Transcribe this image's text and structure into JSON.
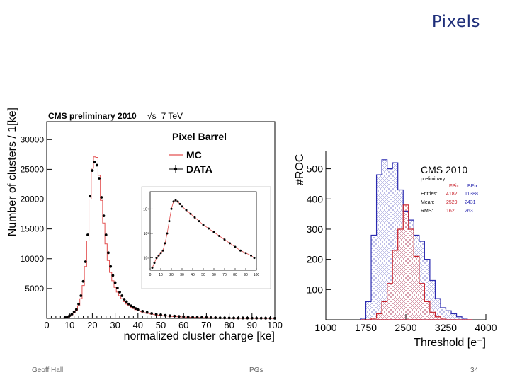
{
  "slide": {
    "title": "Pixels"
  },
  "footer": {
    "author": "Geoff Hall",
    "center": "PGs",
    "page": "34"
  },
  "chart_data": [
    {
      "type": "histogram",
      "title": "CMS preliminary 2010",
      "subtitle": "√s=7 TeV",
      "xlabel": "normalized cluster charge [ke]",
      "ylabel": "Number of clusters / 1[ke]",
      "xlim": [
        0,
        100
      ],
      "ylim": [
        0,
        33000
      ],
      "xticks": [
        0,
        10,
        20,
        30,
        40,
        50,
        60,
        70,
        80,
        90,
        100
      ],
      "yticks": [
        5000,
        10000,
        15000,
        20000,
        25000,
        30000
      ],
      "legend": {
        "header": "Pixel Barrel",
        "placement": "top-right",
        "entries": [
          "MC",
          "DATA"
        ]
      },
      "x": [
        8,
        9,
        10,
        11,
        12,
        13,
        14,
        15,
        16,
        17,
        18,
        19,
        20,
        21,
        22,
        23,
        24,
        25,
        26,
        27,
        28,
        29,
        30,
        31,
        32,
        33,
        34,
        35,
        36,
        37,
        38,
        39,
        40,
        42,
        44,
        46,
        48,
        50,
        52,
        54,
        56,
        58,
        60,
        62,
        64,
        66,
        68,
        70,
        72,
        74,
        76,
        78,
        80,
        82,
        84,
        86,
        88,
        90,
        92,
        94,
        96,
        98,
        100
      ],
      "series": [
        {
          "name": "MC",
          "color": "#e35050",
          "values": [
            100,
            200,
            350,
            600,
            900,
            1300,
            2100,
            3300,
            5500,
            8700,
            13000,
            20000,
            25200,
            27100,
            27000,
            24000,
            19800,
            16000,
            12500,
            9700,
            7700,
            6300,
            5200,
            4400,
            3800,
            3300,
            2800,
            2400,
            2100,
            1850,
            1650,
            1450,
            1300,
            1050,
            850,
            700,
            580,
            490,
            420,
            360,
            300,
            260,
            220,
            190,
            160,
            140,
            120,
            100,
            85,
            70,
            60,
            50,
            40,
            35,
            30,
            25,
            20,
            15,
            12,
            10,
            8,
            6,
            5
          ]
        },
        {
          "name": "DATA",
          "color": "#000000",
          "values": [
            150,
            250,
            450,
            700,
            1100,
            1500,
            2400,
            3800,
            6200,
            9500,
            14000,
            20500,
            24800,
            26200,
            25700,
            23500,
            20300,
            17200,
            14000,
            11000,
            8700,
            7200,
            6000,
            5100,
            4400,
            3800,
            3200,
            2800,
            2400,
            2100,
            1850,
            1650,
            1450,
            1200,
            1000,
            830,
            700,
            600,
            510,
            440,
            380,
            330,
            280,
            240,
            210,
            180,
            160,
            140,
            120,
            100,
            90,
            80,
            70,
            60,
            50,
            45,
            40,
            35,
            30,
            25,
            20,
            18,
            15
          ]
        }
      ],
      "inset": {
        "type": "line",
        "yscale": "log",
        "xlim": [
          0,
          100
        ],
        "xticks": [
          0,
          10,
          20,
          30,
          40,
          50,
          60,
          70,
          80,
          90,
          100
        ],
        "ytick_labels": [
          "10²",
          "10³",
          "10⁴"
        ],
        "x": [
          2,
          4,
          6,
          8,
          10,
          12,
          14,
          16,
          18,
          20,
          22,
          24,
          26,
          28,
          30,
          34,
          38,
          42,
          46,
          50,
          55,
          60,
          65,
          70,
          75,
          80,
          85,
          90,
          95,
          98
        ],
        "values_log10": [
          1.6,
          1.8,
          2.0,
          2.1,
          2.2,
          2.3,
          2.6,
          3.0,
          3.5,
          4.0,
          4.3,
          4.35,
          4.3,
          4.2,
          4.1,
          3.95,
          3.8,
          3.65,
          3.5,
          3.35,
          3.2,
          3.05,
          2.9,
          2.75,
          2.6,
          2.45,
          2.3,
          2.2,
          2.1,
          2.0
        ]
      }
    },
    {
      "type": "histogram",
      "title": "CMS 2010",
      "subtitle": "preliminary",
      "xlabel": "Threshold [e⁻]",
      "ylabel": "#ROC",
      "xlim": [
        1000,
        4000
      ],
      "ylim": [
        0,
        560
      ],
      "xticks": [
        1000,
        1750,
        2500,
        3250,
        4000
      ],
      "yticks": [
        100,
        200,
        300,
        400,
        500
      ],
      "legend": {
        "columns": [
          "FPix",
          "BPix"
        ],
        "rows": [
          {
            "label": "Entries:",
            "fpix": "4182",
            "bpix": "11388"
          },
          {
            "label": "Mean:",
            "fpix": "2529",
            "bpix": "2431"
          },
          {
            "label": "RMS:",
            "fpix": "162",
            "bpix": "263"
          }
        ]
      },
      "bin_width": 100,
      "x": [
        1700,
        1800,
        1900,
        2000,
        2100,
        2200,
        2300,
        2400,
        2500,
        2600,
        2700,
        2800,
        2900,
        3000,
        3100,
        3200,
        3300,
        3400,
        3500,
        3600,
        3700
      ],
      "series": [
        {
          "name": "BPix",
          "color": "#2a2ab0",
          "values": [
            5,
            60,
            280,
            480,
            530,
            500,
            520,
            430,
            360,
            330,
            280,
            260,
            200,
            130,
            70,
            40,
            30,
            20,
            10,
            5,
            0
          ]
        },
        {
          "name": "FPix",
          "color": "#c8202a",
          "values": [
            0,
            0,
            5,
            20,
            60,
            120,
            230,
            300,
            380,
            300,
            210,
            120,
            60,
            25,
            10,
            5,
            0,
            0,
            0,
            0,
            0
          ]
        }
      ]
    }
  ]
}
